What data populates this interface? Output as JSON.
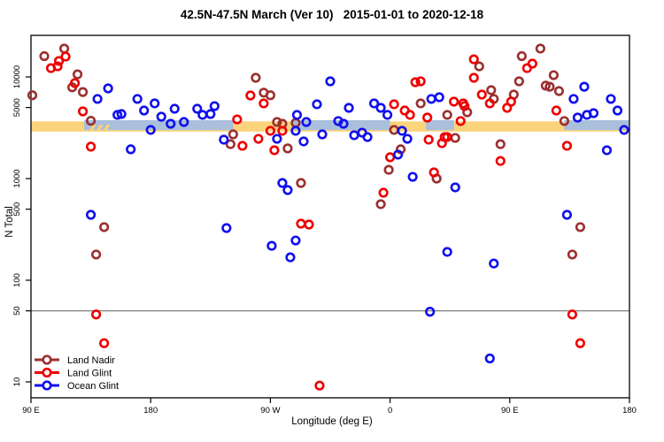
{
  "chart_data": {
    "type": "scatter",
    "title": "42.5N-47.5N March (Ver 10)   2015-01-01 to 2020-12-18",
    "xlabel": "Longitude (deg E)",
    "ylabel": "N Total",
    "x_axis": {
      "range": [
        90,
        540
      ],
      "ticks": [
        90,
        180,
        270,
        360,
        450,
        540
      ],
      "tick_labels": [
        "90 E",
        "180",
        "90 W",
        "0",
        "90 E",
        "180"
      ],
      "note": "longitude axis wraps eastward: 90E, 180, 90W, 0, 90E, 180"
    },
    "y_axis": {
      "scale": "log",
      "ticks": [
        10,
        50,
        100,
        500,
        1000,
        5000,
        10000
      ],
      "tick_labels": [
        "10",
        "50",
        "100",
        "500",
        "1000",
        "5000",
        "10000"
      ]
    },
    "reference_line": {
      "value": 50,
      "color": "#7f7f7f"
    },
    "bands": {
      "land_expected": {
        "color": "#FAD37B",
        "lon_start": 90,
        "lon_end": 540,
        "n_low": 2900,
        "n_high": 3650
      },
      "ocean_expected": {
        "color": "#A9BFDC",
        "segments": [
          [
            130,
            242
          ],
          [
            287,
            360
          ],
          [
            387,
            408
          ],
          [
            491,
            540
          ]
        ],
        "n_low": 3000,
        "n_high": 3750
      },
      "overlap_hatch_lon": [
        133,
        149
      ]
    },
    "legend": {
      "position": "bottom-left",
      "entries": [
        {
          "label": "Land Nadir",
          "color": "#9B3030"
        },
        {
          "label": "Land Glint",
          "color": "#EE0000"
        },
        {
          "label": "Ocean Glint",
          "color": "#1010EE"
        }
      ]
    },
    "series": [
      {
        "name": "Land Nadir",
        "color": "#9B3030",
        "points": [
          [
            91,
            6600
          ],
          [
            100,
            16000
          ],
          [
            115,
            19000
          ],
          [
            125,
            10600
          ],
          [
            121,
            7900
          ],
          [
            129,
            7100
          ],
          [
            135,
            3700
          ],
          [
            259,
            9800
          ],
          [
            265,
            7000
          ],
          [
            270,
            6600
          ],
          [
            275,
            3600
          ],
          [
            279,
            3460
          ],
          [
            289,
            3530
          ],
          [
            242,
            2720
          ],
          [
            240,
            2180
          ],
          [
            283,
            1980
          ],
          [
            293,
            905
          ],
          [
            145,
            333
          ],
          [
            139,
            179
          ],
          [
            363,
            3010
          ],
          [
            409,
            2510
          ],
          [
            368,
            1940
          ],
          [
            359,
            1220
          ],
          [
            395,
            1000
          ],
          [
            353,
            560
          ],
          [
            443,
            2180
          ],
          [
            383,
            5490
          ],
          [
            403,
            4230
          ],
          [
            418,
            4490
          ],
          [
            427,
            12700
          ],
          [
            436,
            7410
          ],
          [
            438,
            6070
          ],
          [
            459,
            16000
          ],
          [
            473,
            19000
          ],
          [
            453,
            6700
          ],
          [
            457,
            9050
          ],
          [
            477,
            8200
          ],
          [
            480,
            8000
          ],
          [
            483,
            10400
          ],
          [
            487,
            7260
          ],
          [
            491,
            3680
          ],
          [
            503,
            333
          ],
          [
            497,
            179
          ]
        ]
      },
      {
        "name": "Land Glint",
        "color": "#EE0000",
        "points": [
          [
            105,
            12200
          ],
          [
            110,
            12700
          ],
          [
            111,
            14350
          ],
          [
            116,
            15850
          ],
          [
            123,
            8690
          ],
          [
            129,
            4580
          ],
          [
            255,
            6570
          ],
          [
            265,
            5490
          ],
          [
            245,
            3820
          ],
          [
            135,
            2060
          ],
          [
            249,
            2100
          ],
          [
            261,
            2460
          ],
          [
            270,
            2950
          ],
          [
            279,
            2950
          ],
          [
            273,
            1900
          ],
          [
            293,
            360
          ],
          [
            299,
            353
          ],
          [
            389,
            2415
          ],
          [
            399,
            2230
          ],
          [
            401,
            2560
          ],
          [
            403,
            2560
          ],
          [
            360,
            1620
          ],
          [
            393,
            1150
          ],
          [
            355,
            726
          ],
          [
            443,
            1490
          ],
          [
            493,
            2100
          ],
          [
            363,
            5380
          ],
          [
            371,
            4670
          ],
          [
            375,
            4230
          ],
          [
            379,
            8870
          ],
          [
            383,
            9050
          ],
          [
            388,
            3980
          ],
          [
            408,
            5710
          ],
          [
            415,
            5490
          ],
          [
            416,
            5160
          ],
          [
            413,
            3680
          ],
          [
            423,
            14900
          ],
          [
            423,
            9800
          ],
          [
            429,
            6700
          ],
          [
            435,
            5490
          ],
          [
            451,
            5710
          ],
          [
            448,
            4960
          ],
          [
            467,
            13500
          ],
          [
            463,
            12200
          ],
          [
            485,
            4670
          ],
          [
            139,
            46
          ],
          [
            145,
            24
          ],
          [
            307,
            9.2
          ],
          [
            497,
            46
          ],
          [
            503,
            24
          ]
        ]
      },
      {
        "name": "Ocean Glint",
        "color": "#1010EE",
        "points": [
          [
            140,
            6070
          ],
          [
            148,
            7710
          ],
          [
            155,
            4230
          ],
          [
            158,
            4310
          ],
          [
            170,
            6070
          ],
          [
            175,
            4670
          ],
          [
            183,
            5490
          ],
          [
            188,
            4060
          ],
          [
            198,
            4860
          ],
          [
            195,
            3460
          ],
          [
            205,
            3600
          ],
          [
            215,
            4860
          ],
          [
            219,
            4230
          ],
          [
            225,
            4310
          ],
          [
            228,
            5160
          ],
          [
            290,
            4230
          ],
          [
            297,
            3600
          ],
          [
            305,
            5380
          ],
          [
            315,
            9050
          ],
          [
            321,
            3680
          ],
          [
            325,
            3460
          ],
          [
            329,
            4960
          ],
          [
            348,
            5490
          ],
          [
            353,
            4960
          ],
          [
            358,
            4230
          ],
          [
            391,
            6070
          ],
          [
            397,
            6310
          ],
          [
            498,
            6070
          ],
          [
            506,
            8000
          ],
          [
            501,
            3980
          ],
          [
            508,
            4230
          ],
          [
            513,
            4400
          ],
          [
            526,
            6070
          ],
          [
            531,
            4670
          ],
          [
            165,
            1940
          ],
          [
            180,
            3010
          ],
          [
            235,
            2415
          ],
          [
            275,
            2460
          ],
          [
            295,
            2320
          ],
          [
            309,
            2720
          ],
          [
            289,
            2950
          ],
          [
            279,
            905
          ],
          [
            283,
            771
          ],
          [
            135,
            440
          ],
          [
            333,
            2670
          ],
          [
            339,
            2830
          ],
          [
            343,
            2560
          ],
          [
            369,
            2950
          ],
          [
            373,
            2460
          ],
          [
            366,
            1720
          ],
          [
            377,
            1040
          ],
          [
            409,
            819
          ],
          [
            523,
            1900
          ],
          [
            493,
            440
          ],
          [
            536,
            3010
          ],
          [
            237,
            326
          ],
          [
            271,
            218
          ],
          [
            289,
            246
          ],
          [
            285,
            168
          ],
          [
            403,
            190
          ],
          [
            438,
            146
          ],
          [
            390,
            49
          ],
          [
            435,
            17
          ]
        ]
      }
    ]
  }
}
